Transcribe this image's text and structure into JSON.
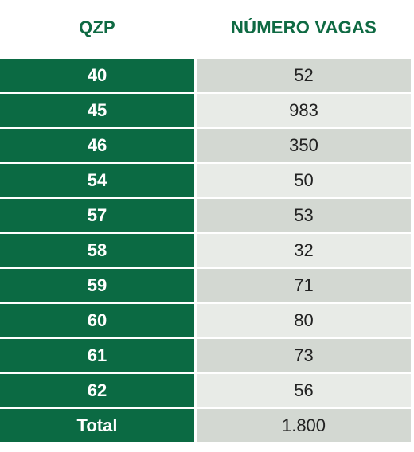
{
  "table": {
    "headers": {
      "col1": "QZP",
      "col2": "NÚMERO VAGAS"
    },
    "rows": [
      {
        "qzp": "40",
        "vagas": "52"
      },
      {
        "qzp": "45",
        "vagas": "983"
      },
      {
        "qzp": "46",
        "vagas": "350"
      },
      {
        "qzp": "54",
        "vagas": "50"
      },
      {
        "qzp": "57",
        "vagas": "53"
      },
      {
        "qzp": "58",
        "vagas": "32"
      },
      {
        "qzp": "59",
        "vagas": "71"
      },
      {
        "qzp": "60",
        "vagas": "80"
      },
      {
        "qzp": "61",
        "vagas": "73"
      },
      {
        "qzp": "62",
        "vagas": "56"
      },
      {
        "qzp": "Total",
        "vagas": "1.800"
      }
    ]
  },
  "colors": {
    "accent_green": "#0b6a43",
    "row_light": "#e8ebe7",
    "row_dark": "#d3d8d2"
  }
}
